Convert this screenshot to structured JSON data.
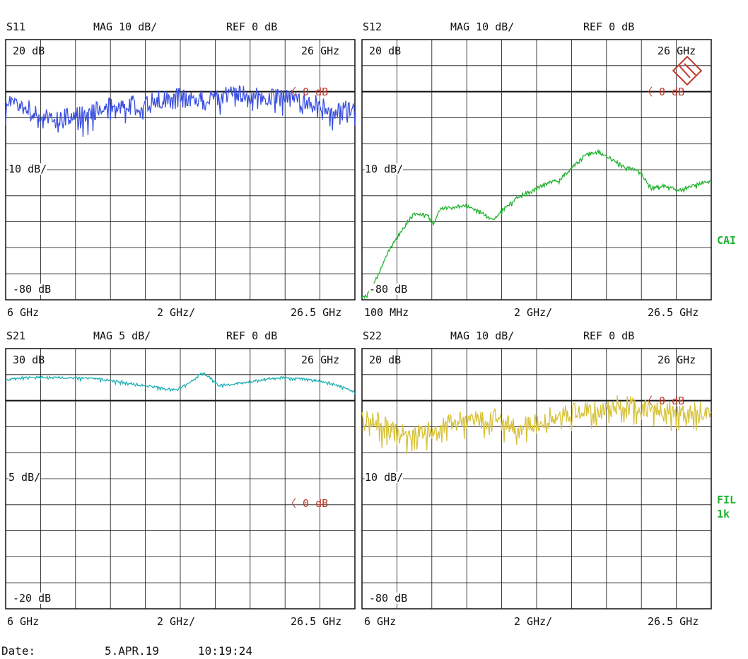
{
  "colors": {
    "s11": "#3a4fe0",
    "s12": "#1fb22e",
    "s21": "#1fb0b4",
    "s22": "#d7c23a",
    "marker": "#c0392b",
    "side": "#1fb22e"
  },
  "panels": [
    {
      "id": "s11",
      "param": "S11",
      "mag": "MAG 10 dB/",
      "ref": "REF 0 dB",
      "top": "20 dB",
      "mid": "10 dB/",
      "bottom": "-80 dB",
      "freq_top": "26 GHz",
      "marker": "0 dB",
      "start": "6 GHz",
      "div": "2 GHz/",
      "stop": "26.5 GHz"
    },
    {
      "id": "s12",
      "param": "S12",
      "mag": "MAG 10 dB/",
      "ref": "REF 0 dB",
      "top": "20 dB",
      "mid": "10 dB/",
      "bottom": "-80 dB",
      "freq_top": "26 GHz",
      "marker": "0 dB",
      "start": "100 MHz",
      "div": "2 GHz/",
      "stop": "26.5 GHz"
    },
    {
      "id": "s21",
      "param": "S21",
      "mag": "MAG 5 dB/",
      "ref": "REF 0 dB",
      "top": "30 dB",
      "mid": "5 dB/",
      "bottom": "-20 dB",
      "freq_top": "26 GHz",
      "marker": "0 dB",
      "start": "6 GHz",
      "div": "2 GHz/",
      "stop": "26.5 GHz"
    },
    {
      "id": "s22",
      "param": "S22",
      "mag": "MAG 10 dB/",
      "ref": "REF 0 dB",
      "top": "20 dB",
      "mid": "10 dB/",
      "bottom": "-80 dB",
      "freq_top": "26 GHz",
      "marker": "0 dB",
      "start": "6 GHz",
      "div": "2 GHz/",
      "stop": "26.5 GHz"
    }
  ],
  "side_labels": {
    "cal": "CAI",
    "fil": "FIL",
    "fil_bw": "1k"
  },
  "footer": {
    "label": "Date:",
    "date": "5.APR.19",
    "time": "10:19:24"
  },
  "chart_data": [
    {
      "type": "line",
      "name": "S11",
      "x_unit": "GHz",
      "y_unit": "dB",
      "ylim": [
        -80,
        20
      ],
      "grid": true,
      "x": [
        6,
        7,
        8,
        9,
        10,
        11,
        12,
        13,
        14,
        15,
        16,
        17,
        18,
        19,
        20,
        21,
        22,
        23,
        24,
        25,
        26,
        26.5
      ],
      "y": [
        -3,
        -5,
        -9,
        -10,
        -9,
        -8,
        -6,
        -5,
        -4,
        -3,
        -2,
        -3,
        -2,
        -1,
        -1,
        -2,
        -1,
        -3,
        -4,
        -6,
        -7,
        -7
      ]
    },
    {
      "type": "line",
      "name": "S12",
      "x_unit": "GHz",
      "y_unit": "dB",
      "ylim": [
        -80,
        20
      ],
      "grid": true,
      "x": [
        0.1,
        0.5,
        1,
        2,
        3,
        4,
        5,
        5.5,
        6,
        7,
        8,
        9,
        10,
        11,
        12,
        13,
        14,
        15,
        16,
        17,
        18,
        19,
        20,
        21,
        22,
        23,
        24,
        25,
        26,
        26.5
      ],
      "y": [
        -79,
        -78,
        -74,
        -62,
        -54,
        -47,
        -47,
        -51,
        -45,
        -44,
        -44,
        -46,
        -49,
        -44,
        -40,
        -38,
        -35,
        -34,
        -29,
        -24,
        -23,
        -26,
        -29,
        -30,
        -37,
        -36,
        -38,
        -36,
        -35,
        -34
      ]
    },
    {
      "type": "line",
      "name": "S21",
      "x_unit": "GHz",
      "y_unit": "dB",
      "ylim": [
        -20,
        30
      ],
      "grid": true,
      "x": [
        6,
        7,
        8,
        9,
        10,
        11,
        12,
        13,
        14,
        15,
        16,
        16.5,
        17,
        17.5,
        18,
        18.5,
        19,
        20,
        21,
        22,
        23,
        24,
        25,
        26,
        26.5
      ],
      "y": [
        24,
        24.5,
        24.5,
        24.5,
        24.4,
        24.3,
        24,
        23.5,
        23,
        22.5,
        22,
        23,
        24,
        25.5,
        24.5,
        23,
        23,
        23.5,
        24,
        24.5,
        24.3,
        24,
        23.5,
        22.3,
        21.6
      ]
    },
    {
      "type": "line",
      "name": "S22",
      "x_unit": "GHz",
      "y_unit": "dB",
      "ylim": [
        -80,
        20
      ],
      "grid": true,
      "x": [
        6,
        7,
        8,
        9,
        10,
        11,
        12,
        13,
        14,
        15,
        16,
        17,
        18,
        19,
        20,
        21,
        22,
        23,
        24,
        25,
        26,
        26.5
      ],
      "y": [
        -6,
        -8,
        -12,
        -13,
        -11,
        -8,
        -7,
        -6,
        -6,
        -10,
        -9,
        -6,
        -5,
        -3,
        -4,
        -1,
        -2,
        -3,
        -3,
        -4,
        -4,
        -3
      ]
    }
  ]
}
